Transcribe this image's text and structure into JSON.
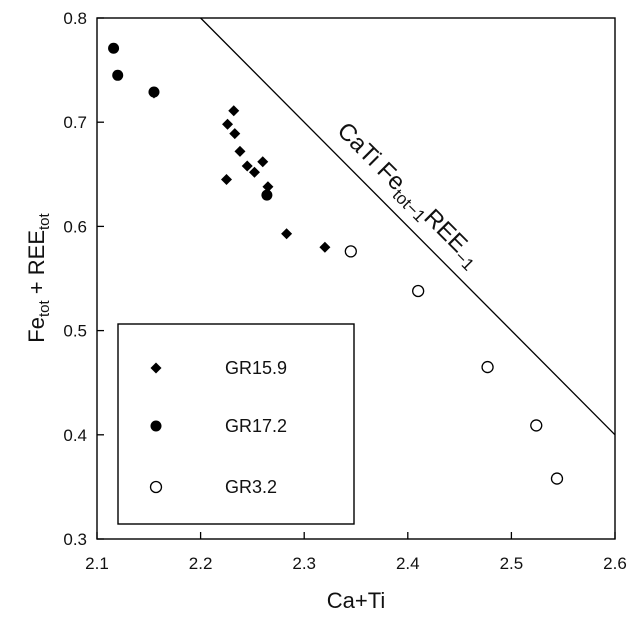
{
  "chart_data": {
    "type": "scatter",
    "title": "",
    "xlabel": "Ca+Ti",
    "ylabel": {
      "base1": "Fe",
      "sub1": "tot",
      "mid": " + REE",
      "sub2": "tot"
    },
    "xlim": [
      2.1,
      2.6
    ],
    "ylim": [
      0.3,
      0.8
    ],
    "xticks": [
      "2.1",
      "2.2",
      "2.3",
      "2.4",
      "2.5",
      "2.6"
    ],
    "yticks": [
      "0.3",
      "0.4",
      "0.5",
      "0.6",
      "0.7",
      "0.8"
    ],
    "grid": false,
    "legend_position": "bottom-left",
    "series": [
      {
        "name": "GR15.9",
        "marker": "filled-diamond",
        "color": "#000000",
        "points": [
          [
            2.155,
            0.728
          ],
          [
            2.232,
            0.711
          ],
          [
            2.226,
            0.698
          ],
          [
            2.233,
            0.689
          ],
          [
            2.238,
            0.672
          ],
          [
            2.245,
            0.658
          ],
          [
            2.252,
            0.652
          ],
          [
            2.26,
            0.662
          ],
          [
            2.265,
            0.638
          ],
          [
            2.225,
            0.645
          ],
          [
            2.283,
            0.593
          ],
          [
            2.32,
            0.58
          ]
        ]
      },
      {
        "name": "GR17.2",
        "marker": "filled-circle",
        "color": "#000000",
        "points": [
          [
            2.116,
            0.771
          ],
          [
            2.12,
            0.745
          ],
          [
            2.155,
            0.729
          ],
          [
            2.264,
            0.63
          ]
        ]
      },
      {
        "name": "GR3.2",
        "marker": "open-circle",
        "color": "#ffffff",
        "points": [
          [
            2.345,
            0.576
          ],
          [
            2.41,
            0.538
          ],
          [
            2.477,
            0.465
          ],
          [
            2.524,
            0.409
          ],
          [
            2.544,
            0.358
          ]
        ]
      }
    ],
    "reference_line": {
      "points": [
        [
          2.2,
          0.8
        ],
        [
          2.6,
          0.4
        ]
      ],
      "label": {
        "pre": "CaTi Fe",
        "sub1": "tot−1",
        "mid": "REE",
        "sub2": "−1"
      }
    }
  }
}
